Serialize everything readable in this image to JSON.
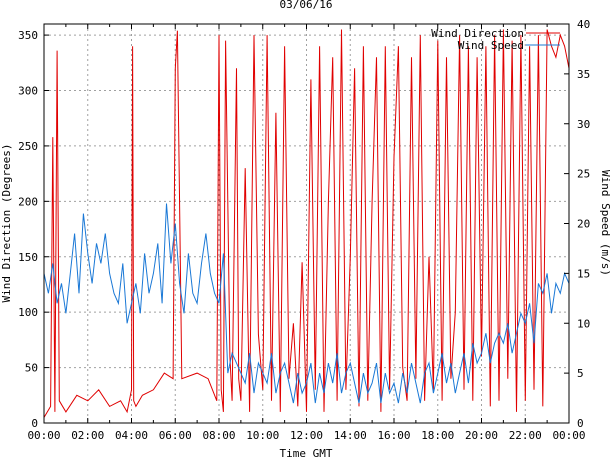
{
  "chart_data": {
    "type": "line",
    "title": "03/06/16",
    "xlabel": "Time GMT",
    "ylabel_left": "Wind Direction (Degrees)",
    "ylabel_right": "Wind Speed (m/s)",
    "x_ticks": [
      "00:00",
      "02:00",
      "04:00",
      "06:00",
      "08:00",
      "10:00",
      "12:00",
      "14:00",
      "16:00",
      "18:00",
      "20:00",
      "22:00",
      "00:00"
    ],
    "x_range_hours": [
      0,
      24
    ],
    "ylim_left": [
      0,
      360
    ],
    "y_ticks_left": [
      "0",
      "50",
      "100",
      "150",
      "200",
      "250",
      "300",
      "350"
    ],
    "ylim_right": [
      0,
      40
    ],
    "y_ticks_right": [
      "0",
      "5",
      "10",
      "15",
      "20",
      "25",
      "30",
      "35",
      "40"
    ],
    "grid": true,
    "legend_position": "top-right",
    "series": [
      {
        "name": "Wind Direction",
        "axis": "left",
        "color": "#e00000",
        "x": [
          0.0,
          0.3,
          0.4,
          0.5,
          0.6,
          0.7,
          1.0,
          1.5,
          2.0,
          2.5,
          3.0,
          3.5,
          3.8,
          4.0,
          4.05,
          4.1,
          4.2,
          4.5,
          5.0,
          5.5,
          5.9,
          6.0,
          6.1,
          6.3,
          7.0,
          7.5,
          7.9,
          8.0,
          8.1,
          8.2,
          8.3,
          8.5,
          8.6,
          8.8,
          8.9,
          9.0,
          9.2,
          9.4,
          9.6,
          9.8,
          10.0,
          10.2,
          10.4,
          10.6,
          10.8,
          11.0,
          11.2,
          11.4,
          11.6,
          11.8,
          12.0,
          12.2,
          12.4,
          12.6,
          12.8,
          13.0,
          13.2,
          13.4,
          13.6,
          13.8,
          14.0,
          14.2,
          14.4,
          14.6,
          14.8,
          15.0,
          15.2,
          15.4,
          15.6,
          15.8,
          16.0,
          16.2,
          16.4,
          16.6,
          16.8,
          17.0,
          17.2,
          17.4,
          17.6,
          17.8,
          18.0,
          18.2,
          18.4,
          18.6,
          18.8,
          19.0,
          19.2,
          19.4,
          19.6,
          19.8,
          20.0,
          20.2,
          20.4,
          20.6,
          20.8,
          21.0,
          21.2,
          21.4,
          21.6,
          21.8,
          22.0,
          22.2,
          22.4,
          22.6,
          22.8,
          23.0,
          23.2,
          23.4,
          23.6,
          23.8,
          24.0
        ],
        "values": [
          5,
          15,
          258,
          10,
          336,
          20,
          10,
          25,
          20,
          30,
          15,
          20,
          10,
          30,
          340,
          20,
          15,
          25,
          30,
          45,
          40,
          320,
          354,
          40,
          45,
          40,
          20,
          350,
          30,
          10,
          345,
          60,
          20,
          320,
          40,
          20,
          230,
          10,
          350,
          80,
          30,
          350,
          20,
          280,
          10,
          340,
          40,
          90,
          15,
          145,
          10,
          310,
          30,
          340,
          10,
          200,
          330,
          20,
          355,
          30,
          150,
          320,
          15,
          340,
          20,
          200,
          330,
          10,
          340,
          30,
          240,
          340,
          50,
          20,
          330,
          40,
          350,
          20,
          150,
          30,
          345,
          20,
          330,
          40,
          100,
          350,
          30,
          340,
          20,
          330,
          60,
          340,
          15,
          350,
          20,
          355,
          40,
          345,
          10,
          350,
          20,
          340,
          30,
          350,
          15,
          355,
          340,
          330,
          350,
          340,
          320
        ]
      },
      {
        "name": "Wind Speed",
        "axis": "right",
        "color": "#1a78d6",
        "x": [
          0.0,
          0.2,
          0.4,
          0.6,
          0.8,
          1.0,
          1.2,
          1.4,
          1.6,
          1.8,
          2.0,
          2.2,
          2.4,
          2.6,
          2.8,
          3.0,
          3.2,
          3.4,
          3.6,
          3.8,
          4.0,
          4.2,
          4.4,
          4.6,
          4.8,
          5.0,
          5.2,
          5.4,
          5.6,
          5.8,
          6.0,
          6.2,
          6.4,
          6.6,
          6.8,
          7.0,
          7.2,
          7.4,
          7.6,
          7.8,
          8.0,
          8.2,
          8.4,
          8.6,
          8.8,
          9.0,
          9.2,
          9.4,
          9.6,
          9.8,
          10.0,
          10.2,
          10.4,
          10.6,
          10.8,
          11.0,
          11.2,
          11.4,
          11.6,
          11.8,
          12.0,
          12.2,
          12.4,
          12.6,
          12.8,
          13.0,
          13.2,
          13.4,
          13.6,
          13.8,
          14.0,
          14.2,
          14.4,
          14.6,
          14.8,
          15.0,
          15.2,
          15.4,
          15.6,
          15.8,
          16.0,
          16.2,
          16.4,
          16.6,
          16.8,
          17.0,
          17.2,
          17.4,
          17.6,
          17.8,
          18.0,
          18.2,
          18.4,
          18.6,
          18.8,
          19.0,
          19.2,
          19.4,
          19.6,
          19.8,
          20.0,
          20.2,
          20.4,
          20.6,
          20.8,
          21.0,
          21.2,
          21.4,
          21.6,
          21.8,
          22.0,
          22.2,
          22.4,
          22.6,
          22.8,
          23.0,
          23.2,
          23.4,
          23.6,
          23.8,
          24.0
        ],
        "values": [
          15,
          13,
          16,
          12,
          14,
          11,
          15,
          19,
          13,
          21,
          17,
          14,
          18,
          16,
          19,
          15,
          13,
          12,
          16,
          10,
          12,
          14,
          11,
          17,
          13,
          15,
          18,
          12,
          22,
          16,
          20,
          14,
          11,
          17,
          13,
          12,
          16,
          19,
          15,
          13,
          12,
          17,
          5,
          7,
          6,
          5,
          4,
          7,
          3,
          6,
          5,
          4,
          7,
          3,
          5,
          6,
          4,
          2,
          5,
          3,
          4,
          6,
          2,
          5,
          3,
          6,
          4,
          7,
          3,
          5,
          6,
          4,
          2,
          5,
          3,
          4,
          6,
          2,
          5,
          3,
          4,
          2,
          5,
          3,
          6,
          4,
          2,
          5,
          6,
          3,
          5,
          7,
          4,
          6,
          3,
          5,
          7,
          4,
          8,
          6,
          7,
          9,
          6,
          8,
          9,
          8,
          10,
          7,
          9,
          11,
          10,
          12,
          8,
          14,
          13,
          15,
          11,
          14,
          13,
          15,
          14
        ]
      }
    ]
  }
}
